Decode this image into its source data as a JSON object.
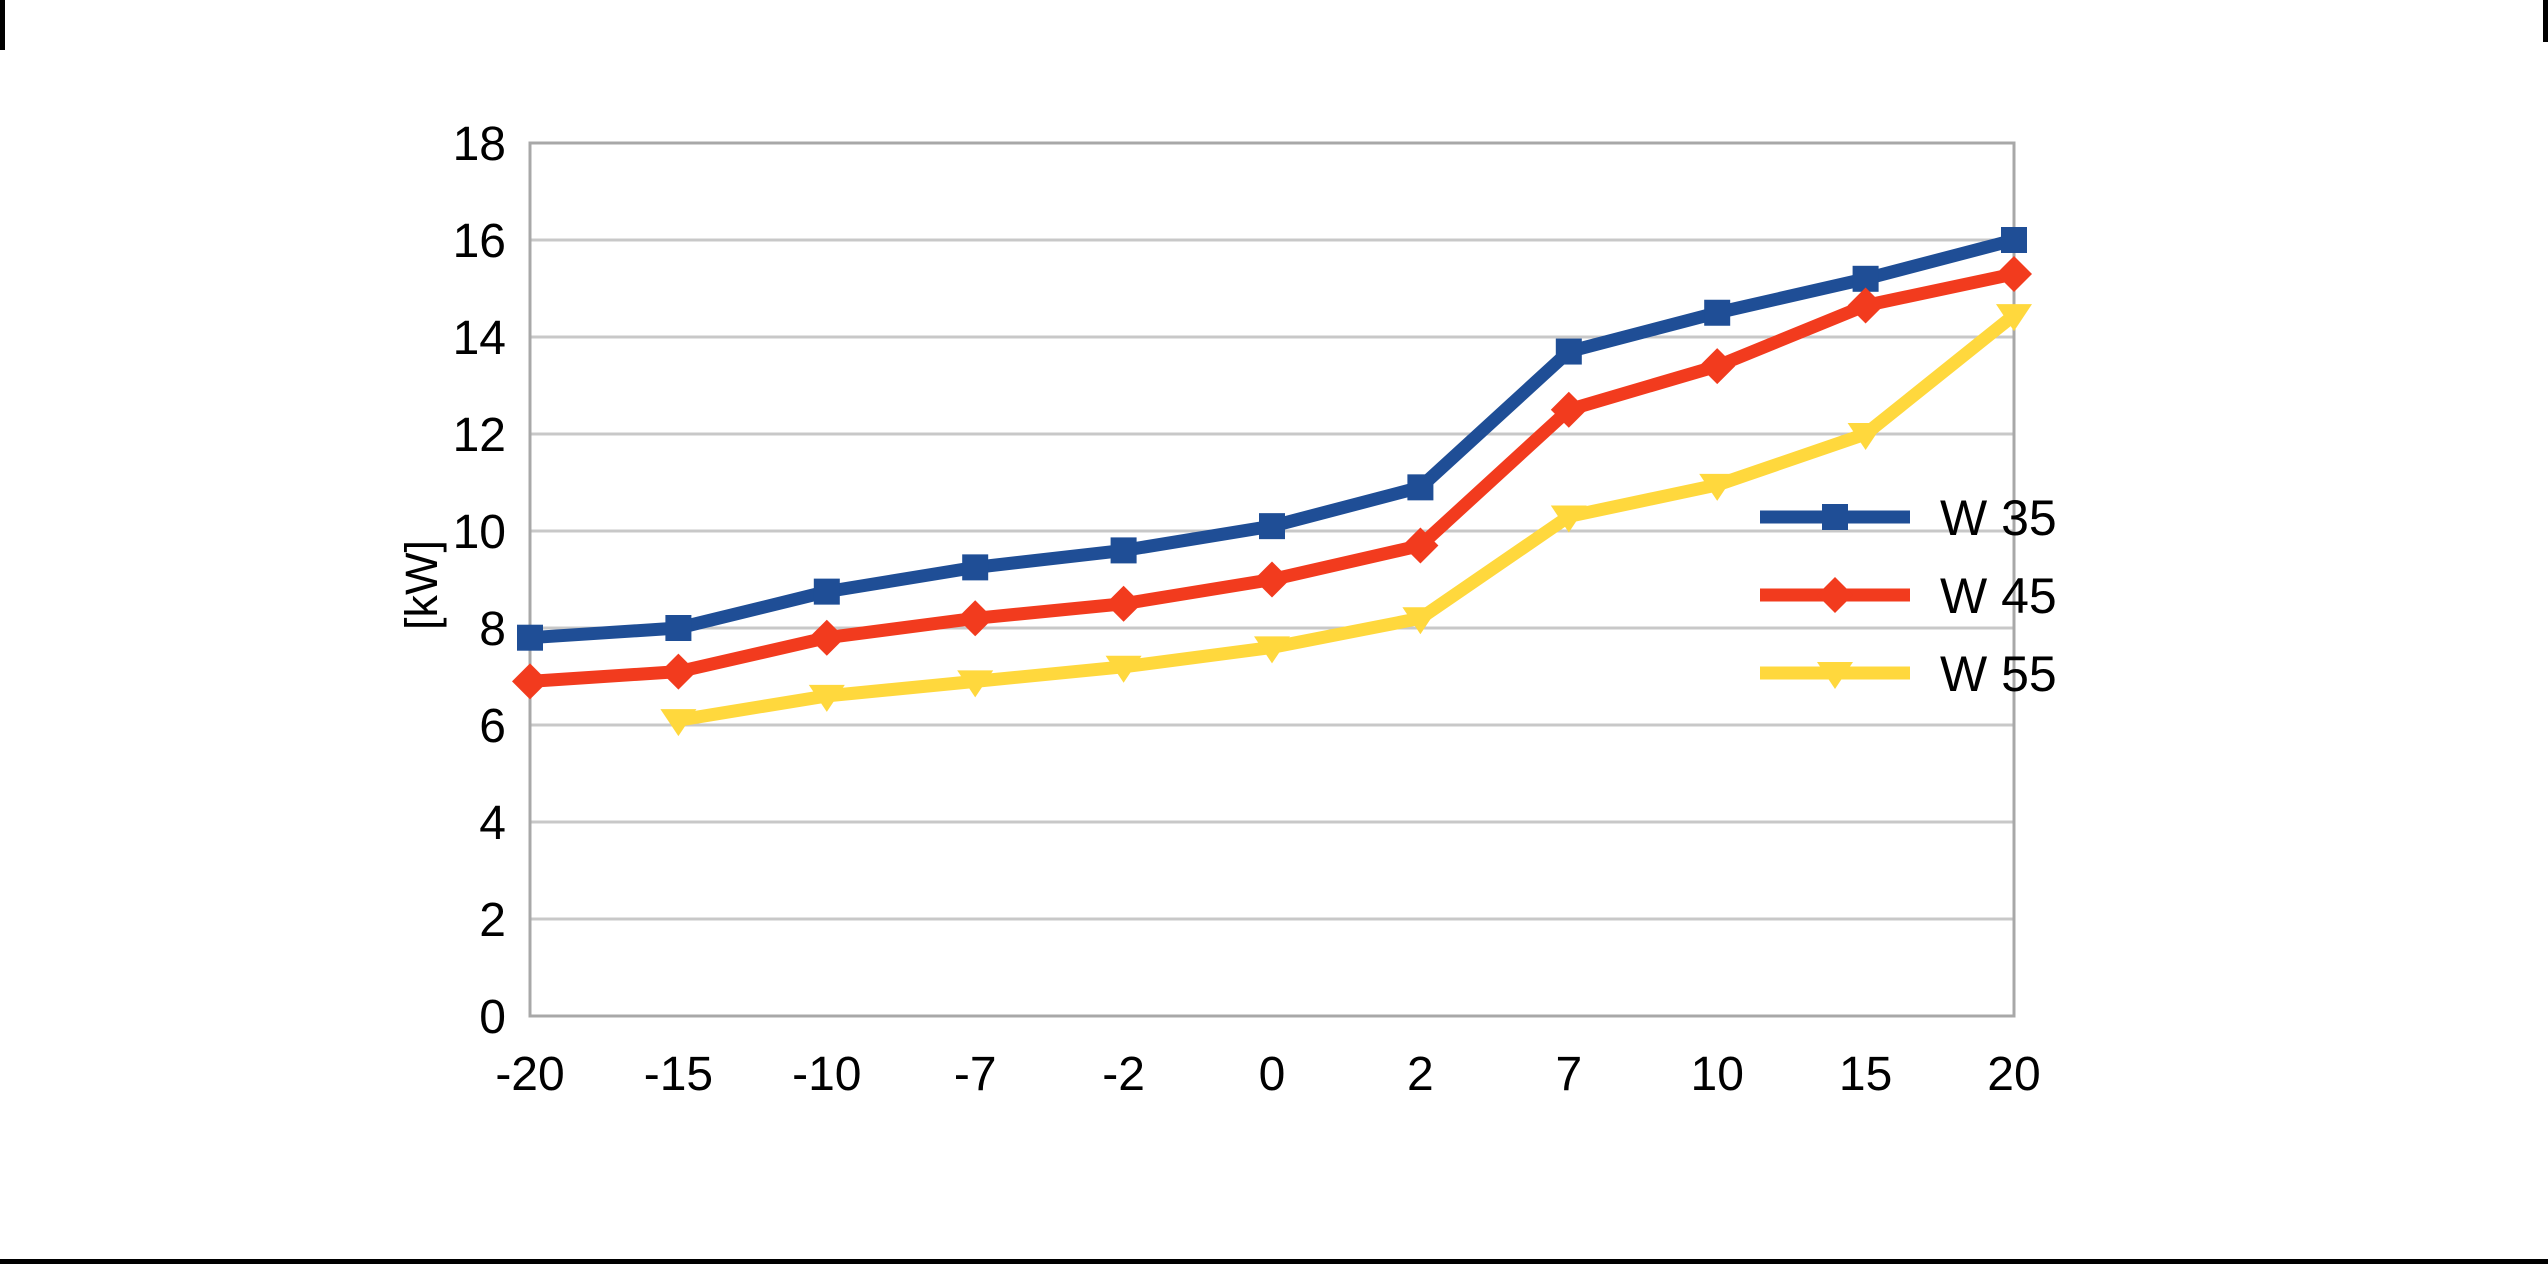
{
  "chart_data": {
    "type": "line",
    "title": "",
    "xlabel": "",
    "ylabel": "[kW]",
    "ylim": [
      0,
      18
    ],
    "ytick_step": 2,
    "grid": true,
    "legend_position": "right-inside",
    "categories": [
      "-20",
      "-15",
      "-10",
      "-7",
      "-2",
      "0",
      "2",
      "7",
      "10",
      "15",
      "20"
    ],
    "series": [
      {
        "name": "W 35",
        "color": "#1F4E96",
        "marker": "square",
        "values": [
          7.8,
          8.0,
          8.75,
          9.25,
          9.6,
          10.1,
          10.9,
          13.7,
          14.5,
          15.2,
          16.0
        ]
      },
      {
        "name": "W 45",
        "color": "#F23B1E",
        "marker": "diamond",
        "values": [
          6.9,
          7.1,
          7.8,
          8.2,
          8.5,
          9.0,
          9.7,
          12.5,
          13.4,
          14.65,
          15.3
        ]
      },
      {
        "name": "W 55",
        "color": "#FFD83D",
        "marker": "triangle-down",
        "values": [
          null,
          6.1,
          6.6,
          6.9,
          7.2,
          7.6,
          8.2,
          10.3,
          10.95,
          12.0,
          14.45
        ]
      }
    ]
  },
  "colors": {
    "grid": "#c8c8c8",
    "axis": "#a8a8a8",
    "text": "#000000",
    "background": "#ffffff"
  }
}
